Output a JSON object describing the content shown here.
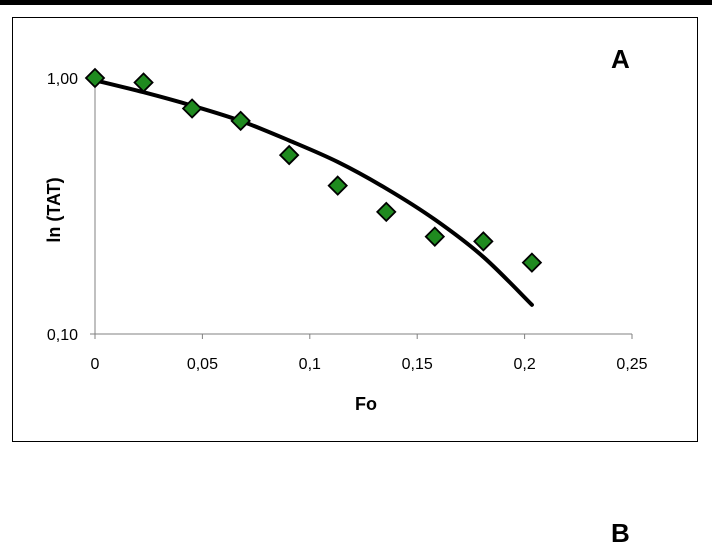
{
  "panel_labels": {
    "top": "A",
    "bottom": "B"
  },
  "chart_data": {
    "type": "scatter",
    "title": "",
    "xlabel": "Fo",
    "ylabel": "ln (TAT)",
    "xlim": [
      0,
      0.25
    ],
    "ylim": [
      0.1,
      1.0
    ],
    "y_scale": "log",
    "x_ticks": [
      "0",
      "0,05",
      "0,1",
      "0,15",
      "0,2",
      "0,25"
    ],
    "y_ticks": [
      "0,10",
      "1,00"
    ],
    "grid": false,
    "legend": "none",
    "marker": "diamond",
    "marker_color": "#1f8a1f",
    "series": [
      {
        "type": "scatter",
        "x": [
          0,
          0.0226,
          0.0452,
          0.0678,
          0.0904,
          0.113,
          0.1356,
          0.1582,
          0.1808,
          0.2034
        ],
        "y": [
          1.0,
          0.96,
          0.76,
          0.68,
          0.5,
          0.38,
          0.3,
          0.24,
          0.23,
          0.19
        ]
      },
      {
        "type": "line",
        "color": "#000000",
        "x": [
          0,
          0.0226,
          0.0452,
          0.0678,
          0.0904,
          0.113,
          0.1356,
          0.1582,
          0.1808,
          0.2034
        ],
        "y": [
          0.98,
          0.88,
          0.78,
          0.68,
          0.57,
          0.47,
          0.37,
          0.28,
          0.2,
          0.13
        ]
      }
    ]
  }
}
